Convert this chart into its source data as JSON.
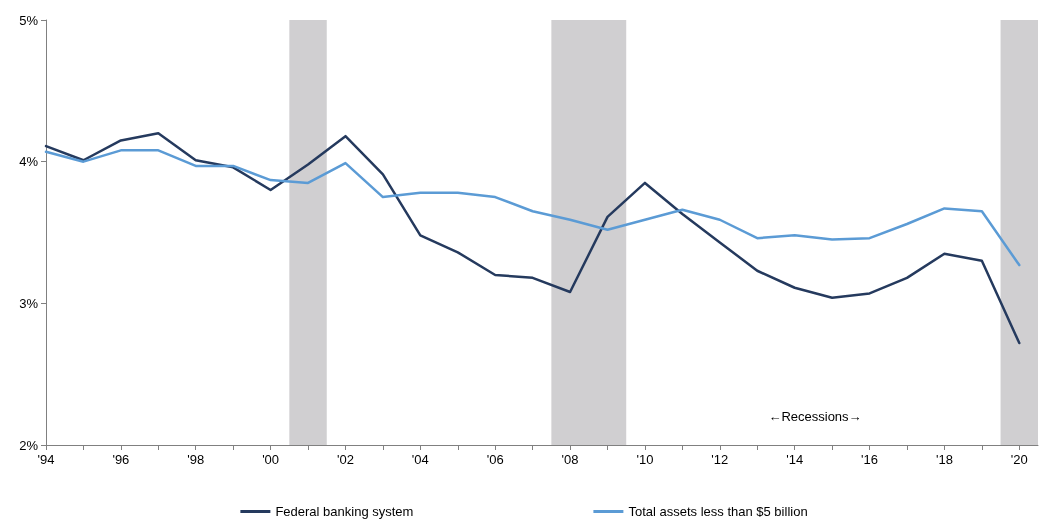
{
  "chart_data": {
    "type": "line",
    "x": [
      1994,
      1995,
      1996,
      1997,
      1998,
      1999,
      2000,
      2001,
      2002,
      2003,
      2004,
      2005,
      2006,
      2007,
      2008,
      2009,
      2010,
      2011,
      2012,
      2013,
      2014,
      2015,
      2016,
      2017,
      2018,
      2019,
      2020
    ],
    "series": [
      {
        "name": "Federal banking system",
        "color": "#253a5e",
        "values": [
          4.11,
          4.01,
          4.15,
          4.2,
          4.01,
          3.96,
          3.8,
          3.98,
          4.18,
          3.91,
          3.48,
          3.36,
          3.2,
          3.18,
          3.08,
          3.61,
          3.85,
          3.63,
          3.43,
          3.23,
          3.11,
          3.04,
          3.07,
          3.18,
          3.35,
          3.3,
          2.72
        ]
      },
      {
        "name": "Total assets less than $5 billion",
        "color": "#5b9bd5",
        "values": [
          4.07,
          4.0,
          4.08,
          4.08,
          3.97,
          3.97,
          3.87,
          3.85,
          3.99,
          3.75,
          3.78,
          3.78,
          3.75,
          3.65,
          3.59,
          3.52,
          3.59,
          3.66,
          3.59,
          3.46,
          3.48,
          3.45,
          3.46,
          3.56,
          3.67,
          3.65,
          3.27
        ]
      }
    ],
    "xlim": [
      1994,
      2020.5
    ],
    "xticks": [
      {
        "value": 1994,
        "label": "'94"
      },
      {
        "value": 1995,
        "label": null
      },
      {
        "value": 1996,
        "label": "'96"
      },
      {
        "value": 1997,
        "label": null
      },
      {
        "value": 1998,
        "label": "'98"
      },
      {
        "value": 1999,
        "label": null
      },
      {
        "value": 2000,
        "label": "'00"
      },
      {
        "value": 2001,
        "label": null
      },
      {
        "value": 2002,
        "label": "'02"
      },
      {
        "value": 2003,
        "label": null
      },
      {
        "value": 2004,
        "label": "'04"
      },
      {
        "value": 2005,
        "label": null
      },
      {
        "value": 2006,
        "label": "'06"
      },
      {
        "value": 2007,
        "label": null
      },
      {
        "value": 2008,
        "label": "'08"
      },
      {
        "value": 2009,
        "label": null
      },
      {
        "value": 2010,
        "label": "'10"
      },
      {
        "value": 2011,
        "label": null
      },
      {
        "value": 2012,
        "label": "'12"
      },
      {
        "value": 2013,
        "label": null
      },
      {
        "value": 2014,
        "label": "'14"
      },
      {
        "value": 2015,
        "label": null
      },
      {
        "value": 2016,
        "label": "'16"
      },
      {
        "value": 2017,
        "label": null
      },
      {
        "value": 2018,
        "label": "'18"
      },
      {
        "value": 2019,
        "label": null
      },
      {
        "value": 2020,
        "label": "'20"
      }
    ],
    "ylim": [
      2,
      5
    ],
    "yticks": [
      {
        "value": 2,
        "label": "2%"
      },
      {
        "value": 3,
        "label": "3%"
      },
      {
        "value": 4,
        "label": "4%"
      },
      {
        "value": 5,
        "label": "5%"
      }
    ],
    "bands": [
      {
        "axis": "x",
        "from": 2000.5,
        "to": 2001.5,
        "color": "#d0cfd1"
      },
      {
        "axis": "x",
        "from": 2007.5,
        "to": 2009.5,
        "color": "#d0cfd1"
      },
      {
        "axis": "x",
        "from": 2019.5,
        "to": 2020.5,
        "color": "#d0cfd1"
      }
    ],
    "annotations": [
      "←Recessions→"
    ],
    "grid": false,
    "legend": "bottom",
    "marker": "none",
    "line_style": "solid"
  }
}
